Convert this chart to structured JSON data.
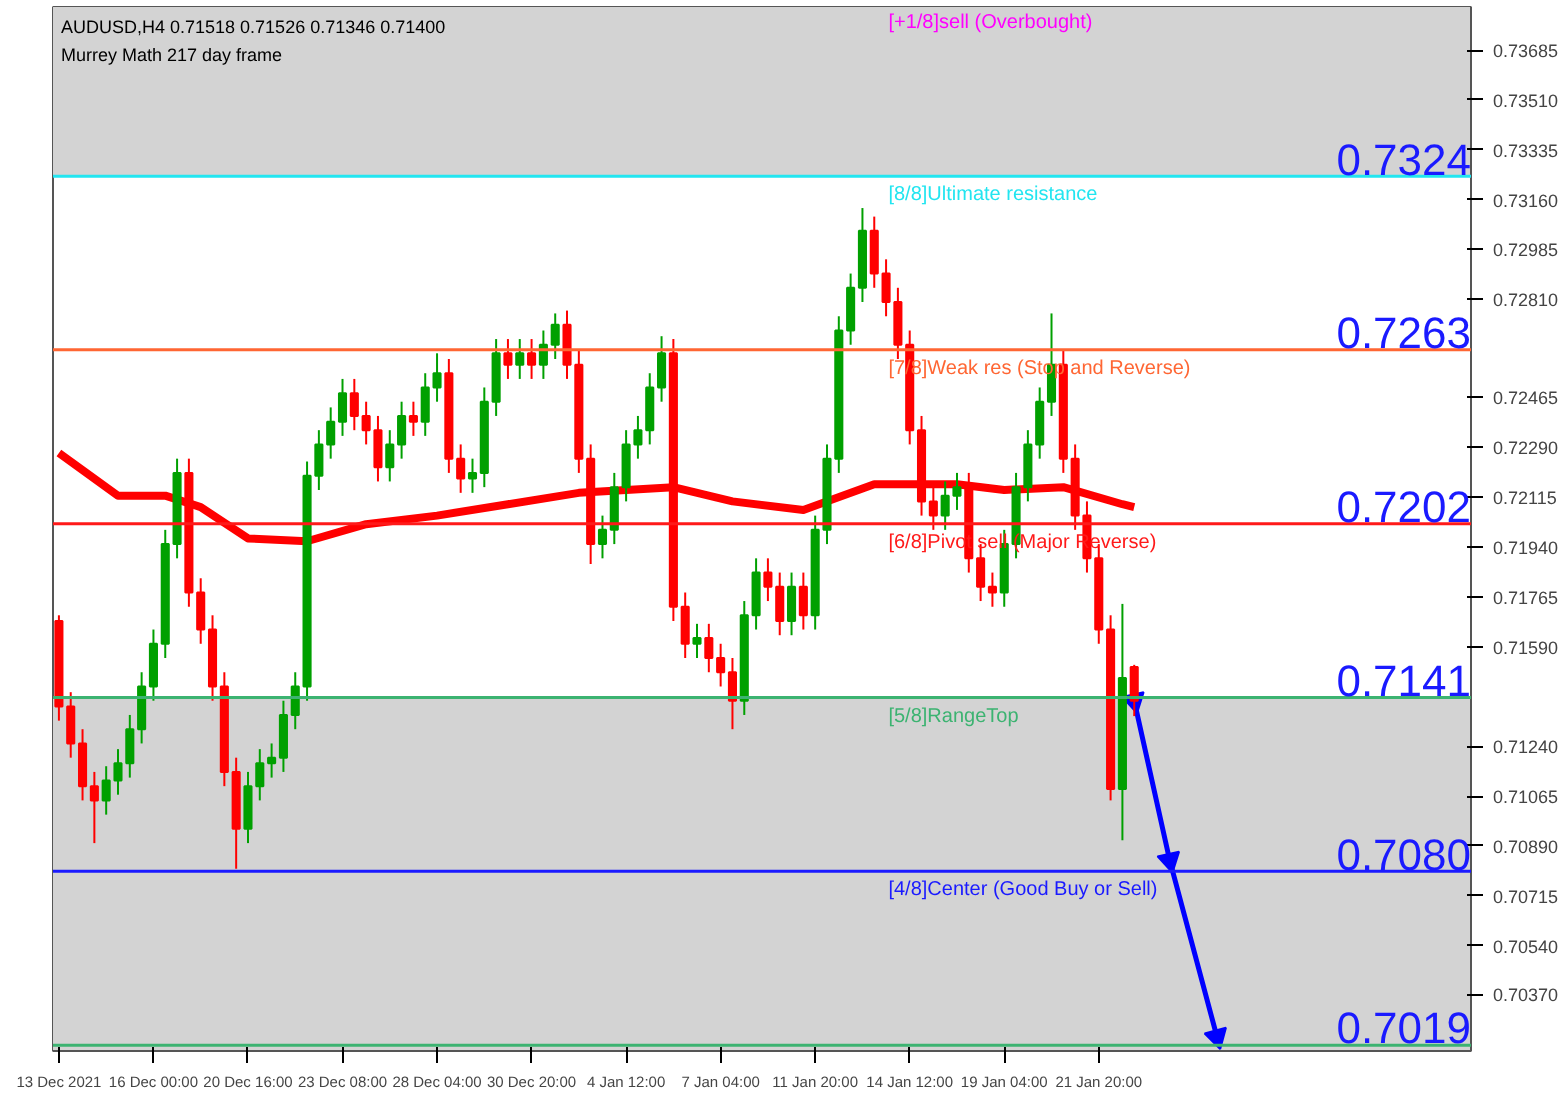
{
  "chart_data": {
    "type": "candlestick",
    "title": "AUDUSD,H4  0.71518 0.71526 0.71346 0.71400",
    "subtitle": "Murrey Math 217 day frame",
    "categories": [
      "13 Dec 2021",
      null,
      null,
      null,
      null,
      null,
      null,
      null,
      "16 Dec 00:00",
      null,
      null,
      null,
      null,
      null,
      null,
      null,
      "20 Dec 16:00",
      null,
      null,
      null,
      null,
      null,
      null,
      null,
      "23 Dec 08:00",
      null,
      null,
      null,
      null,
      null,
      null,
      null,
      "28 Dec 04:00",
      null,
      null,
      null,
      null,
      null,
      null,
      null,
      "30 Dec 20:00",
      null,
      null,
      null,
      null,
      null,
      null,
      null,
      "4 Jan 12:00",
      null,
      null,
      null,
      null,
      null,
      null,
      null,
      "7 Jan 04:00",
      null,
      null,
      null,
      null,
      null,
      null,
      null,
      "11 Jan 20:00",
      null,
      null,
      null,
      null,
      null,
      null,
      null,
      "14 Jan 12:00",
      null,
      null,
      null,
      null,
      null,
      null,
      null,
      "19 Jan 04:00",
      null,
      null,
      null,
      null,
      null,
      null,
      null,
      "21 Jan 20:00",
      null,
      null,
      null,
      null,
      null,
      null,
      null,
      null,
      null,
      null,
      null,
      null,
      null,
      null,
      null,
      null,
      null,
      null,
      null,
      null,
      null,
      null,
      null,
      null,
      null,
      null,
      null,
      null,
      null,
      null,
      null
    ],
    "ohlc": [
      [
        0.7168,
        0.717,
        0.7133,
        0.7138
      ],
      [
        0.7138,
        0.7143,
        0.712,
        0.7125
      ],
      [
        0.7125,
        0.713,
        0.7105,
        0.711
      ],
      [
        0.711,
        0.7115,
        0.709,
        0.7105
      ],
      [
        0.7105,
        0.7117,
        0.71,
        0.7112
      ],
      [
        0.7112,
        0.7123,
        0.7107,
        0.7118
      ],
      [
        0.7118,
        0.7135,
        0.7113,
        0.713
      ],
      [
        0.713,
        0.715,
        0.7125,
        0.7145
      ],
      [
        0.7145,
        0.7165,
        0.714,
        0.716
      ],
      [
        0.716,
        0.72,
        0.7155,
        0.7195
      ],
      [
        0.7195,
        0.7225,
        0.719,
        0.722
      ],
      [
        0.722,
        0.7225,
        0.7173,
        0.7178
      ],
      [
        0.7178,
        0.7183,
        0.716,
        0.7165
      ],
      [
        0.7165,
        0.717,
        0.714,
        0.7145
      ],
      [
        0.7145,
        0.715,
        0.711,
        0.7115
      ],
      [
        0.7115,
        0.712,
        0.7081,
        0.7095
      ],
      [
        0.7095,
        0.7115,
        0.709,
        0.711
      ],
      [
        0.711,
        0.7123,
        0.7105,
        0.7118
      ],
      [
        0.7118,
        0.7125,
        0.7113,
        0.712
      ],
      [
        0.712,
        0.714,
        0.7115,
        0.7135
      ],
      [
        0.7135,
        0.715,
        0.713,
        0.7145
      ],
      [
        0.7145,
        0.7224,
        0.714,
        0.7219
      ],
      [
        0.7219,
        0.7235,
        0.7214,
        0.723
      ],
      [
        0.723,
        0.7243,
        0.7225,
        0.7238
      ],
      [
        0.7238,
        0.7253,
        0.7233,
        0.7248
      ],
      [
        0.7248,
        0.7253,
        0.7235,
        0.724
      ],
      [
        0.724,
        0.7245,
        0.723,
        0.7235
      ],
      [
        0.7235,
        0.724,
        0.7217,
        0.7222
      ],
      [
        0.7222,
        0.7235,
        0.7217,
        0.723
      ],
      [
        0.723,
        0.7245,
        0.7225,
        0.724
      ],
      [
        0.724,
        0.7245,
        0.7233,
        0.7238
      ],
      [
        0.7238,
        0.7255,
        0.7233,
        0.725
      ],
      [
        0.725,
        0.7262,
        0.7245,
        0.7255
      ],
      [
        0.7255,
        0.726,
        0.722,
        0.7225
      ],
      [
        0.7225,
        0.723,
        0.7213,
        0.7218
      ],
      [
        0.7218,
        0.7225,
        0.7213,
        0.722
      ],
      [
        0.722,
        0.725,
        0.7215,
        0.7245
      ],
      [
        0.7245,
        0.7267,
        0.724,
        0.7262
      ],
      [
        0.7262,
        0.7267,
        0.7253,
        0.7258
      ],
      [
        0.7258,
        0.7267,
        0.7253,
        0.7262
      ],
      [
        0.7262,
        0.7267,
        0.7253,
        0.7258
      ],
      [
        0.7258,
        0.727,
        0.7253,
        0.7265
      ],
      [
        0.7265,
        0.7276,
        0.726,
        0.7272
      ],
      [
        0.7272,
        0.7277,
        0.7253,
        0.7258
      ],
      [
        0.7258,
        0.7263,
        0.722,
        0.7225
      ],
      [
        0.7225,
        0.723,
        0.7188,
        0.7195
      ],
      [
        0.7195,
        0.7205,
        0.719,
        0.72
      ],
      [
        0.72,
        0.722,
        0.7195,
        0.7215
      ],
      [
        0.7215,
        0.7235,
        0.721,
        0.723
      ],
      [
        0.723,
        0.724,
        0.7225,
        0.7235
      ],
      [
        0.7235,
        0.7255,
        0.723,
        0.725
      ],
      [
        0.725,
        0.7268,
        0.7245,
        0.7262
      ],
      [
        0.7262,
        0.7267,
        0.7168,
        0.7173
      ],
      [
        0.7173,
        0.7178,
        0.7155,
        0.716
      ],
      [
        0.716,
        0.7167,
        0.7155,
        0.7162
      ],
      [
        0.7162,
        0.7167,
        0.715,
        0.7155
      ],
      [
        0.7155,
        0.716,
        0.7145,
        0.715
      ],
      [
        0.715,
        0.7155,
        0.713,
        0.714
      ],
      [
        0.714,
        0.7175,
        0.7135,
        0.717
      ],
      [
        0.717,
        0.719,
        0.7165,
        0.7185
      ],
      [
        0.7185,
        0.719,
        0.7175,
        0.718
      ],
      [
        0.718,
        0.7185,
        0.7163,
        0.7168
      ],
      [
        0.7168,
        0.7185,
        0.7163,
        0.718
      ],
      [
        0.718,
        0.7185,
        0.7165,
        0.717
      ],
      [
        0.717,
        0.7205,
        0.7165,
        0.72
      ],
      [
        0.72,
        0.723,
        0.7195,
        0.7225
      ],
      [
        0.7225,
        0.7275,
        0.722,
        0.727
      ],
      [
        0.727,
        0.729,
        0.7265,
        0.7285
      ],
      [
        0.7285,
        0.7313,
        0.728,
        0.7305
      ],
      [
        0.7305,
        0.731,
        0.7285,
        0.729
      ],
      [
        0.729,
        0.7295,
        0.7275,
        0.728
      ],
      [
        0.728,
        0.7285,
        0.726,
        0.7265
      ],
      [
        0.7265,
        0.727,
        0.723,
        0.7235
      ],
      [
        0.7235,
        0.724,
        0.7205,
        0.721
      ],
      [
        0.721,
        0.7215,
        0.72,
        0.7205
      ],
      [
        0.7205,
        0.7217,
        0.72,
        0.7212
      ],
      [
        0.7212,
        0.722,
        0.7207,
        0.7215
      ],
      [
        0.7215,
        0.722,
        0.7185,
        0.719
      ],
      [
        0.719,
        0.7195,
        0.7175,
        0.718
      ],
      [
        0.718,
        0.7185,
        0.7173,
        0.7178
      ],
      [
        0.7178,
        0.72,
        0.7173,
        0.7195
      ],
      [
        0.7195,
        0.722,
        0.719,
        0.7215
      ],
      [
        0.7215,
        0.7235,
        0.721,
        0.723
      ],
      [
        0.723,
        0.725,
        0.7225,
        0.7245
      ],
      [
        0.7245,
        0.7276,
        0.724,
        0.7258
      ],
      [
        0.7258,
        0.7263,
        0.722,
        0.7225
      ],
      [
        0.7225,
        0.723,
        0.72,
        0.7205
      ],
      [
        0.7205,
        0.721,
        0.7185,
        0.719
      ],
      [
        0.719,
        0.7195,
        0.716,
        0.7165
      ],
      [
        0.7165,
        0.717,
        0.7105,
        0.7109
      ],
      [
        0.7109,
        0.7174,
        0.7091,
        0.7148
      ],
      [
        0.71518,
        0.71526,
        0.71346,
        0.714
      ],
      null,
      null,
      null,
      null,
      null,
      null,
      null,
      null,
      null,
      null,
      null,
      null,
      null,
      null,
      null,
      null,
      null,
      null,
      null,
      null,
      null,
      null,
      null,
      null,
      null,
      null,
      null,
      null
    ],
    "colors": [
      "#ff0000",
      "#ff0000",
      "#ff0000",
      "#ff0000",
      "#00a000",
      "#00a000",
      "#00a000",
      "#00a000",
      "#00a000",
      "#00a000",
      "#00a000",
      "#ff0000",
      "#ff0000",
      "#ff0000",
      "#ff0000",
      "#ff0000",
      "#00a000",
      "#00a000",
      "#00a000",
      "#00a000",
      "#00a000",
      "#00a000",
      "#00a000",
      "#00a000",
      "#00a000",
      "#ff0000",
      "#ff0000",
      "#ff0000",
      "#00a000",
      "#00a000",
      "#ff0000",
      "#00a000",
      "#00a000",
      "#ff0000",
      "#ff0000",
      "#00a000",
      "#00a000",
      "#00a000",
      "#ff0000",
      "#00a000",
      "#ff0000",
      "#00a000",
      "#00a000",
      "#ff0000",
      "#ff0000",
      "#ff0000",
      "#00a000",
      "#00a000",
      "#00a000",
      "#00a000",
      "#00a000",
      "#00a000",
      "#ff0000",
      "#ff0000",
      "#00a000",
      "#ff0000",
      "#ff0000",
      "#ff0000",
      "#00a000",
      "#00a000",
      "#ff0000",
      "#ff0000",
      "#00a000",
      "#ff0000",
      "#00a000",
      "#00a000",
      "#00a000",
      "#00a000",
      "#00a000",
      "#ff0000",
      "#ff0000",
      "#ff0000",
      "#ff0000",
      "#ff0000",
      "#ff0000",
      "#00a000",
      "#00a000",
      "#ff0000",
      "#ff0000",
      "#ff0000",
      "#00a000",
      "#00a000",
      "#00a000",
      "#00a000",
      "#00a000",
      "#ff0000",
      "#ff0000",
      "#ff0000",
      "#ff0000",
      "#ff0000",
      "#00a000",
      "#ff0000",
      null,
      null,
      null,
      null,
      null,
      null,
      null,
      null,
      null,
      null,
      null,
      null,
      null,
      null,
      null,
      null,
      null,
      null,
      null,
      null,
      null,
      null,
      null,
      null,
      null,
      null,
      null,
      null
    ],
    "series": [
      {
        "type": "line",
        "color": "#ff0000",
        "values": [
          0.7227,
          null,
          null,
          null,
          null,
          0.7212,
          null,
          null,
          null,
          0.7212,
          null,
          null,
          0.7208,
          null,
          null,
          null,
          0.7197,
          null,
          null,
          null,
          null,
          0.7196,
          null,
          null,
          null,
          null,
          0.7202,
          null,
          null,
          null,
          null,
          null,
          0.7205,
          null,
          null,
          null,
          null,
          null,
          0.7209,
          null,
          null,
          null,
          null,
          null,
          0.7213,
          null,
          null,
          null,
          null,
          null,
          null,
          null,
          0.7215,
          null,
          null,
          null,
          null,
          0.721,
          null,
          null,
          null,
          null,
          null,
          0.7207,
          null,
          null,
          null,
          null,
          null,
          0.7216,
          null,
          null,
          null,
          null,
          null,
          null,
          0.7216,
          null,
          null,
          null,
          0.7214,
          null,
          null,
          null,
          null,
          0.7215,
          null,
          null,
          null,
          null,
          0.7209,
          0.7208,
          null,
          null,
          null,
          null,
          null,
          null,
          null,
          null,
          null,
          null,
          null,
          null,
          null,
          null,
          null,
          null,
          null,
          null,
          null,
          null,
          null,
          null,
          null,
          null,
          null,
          null,
          null,
          null
        ]
      },
      {
        "type": "line",
        "color": "#0000ff",
        "marker": "triangle",
        "values": [
          null,
          null,
          null,
          null,
          null,
          null,
          null,
          null,
          null,
          null,
          null,
          null,
          null,
          null,
          null,
          null,
          null,
          null,
          null,
          null,
          null,
          null,
          null,
          null,
          null,
          null,
          null,
          null,
          null,
          null,
          null,
          null,
          null,
          null,
          null,
          null,
          null,
          null,
          null,
          null,
          null,
          null,
          null,
          null,
          null,
          null,
          null,
          null,
          null,
          null,
          null,
          null,
          null,
          null,
          null,
          null,
          null,
          null,
          null,
          null,
          null,
          null,
          null,
          null,
          null,
          null,
          null,
          null,
          null,
          null,
          null,
          null,
          null,
          null,
          null,
          null,
          null,
          null,
          null,
          null,
          null,
          null,
          null,
          null,
          null,
          null,
          null,
          null,
          null,
          null,
          null,
          0.714,
          null,
          null,
          0.7084,
          null,
          null,
          null,
          0.7022,
          null,
          null,
          null,
          null,
          null,
          null,
          null,
          null,
          null,
          null,
          null,
          null,
          null,
          null,
          null,
          null,
          null,
          null,
          null,
          null,
          null
        ]
      }
    ],
    "ylim": [
      0.7017,
      0.73836
    ],
    "yticks": [
      {
        "value": 0.7037,
        "label": "0.70370"
      },
      {
        "value": 0.7054,
        "label": "0.70540"
      },
      {
        "value": 0.70715,
        "label": "0.70715"
      },
      {
        "value": 0.7089,
        "label": "0.70890"
      },
      {
        "value": 0.71065,
        "label": "0.71065"
      },
      {
        "value": 0.7124,
        "label": "0.71240"
      },
      {
        "value": 0.7159,
        "label": "0.71590"
      },
      {
        "value": 0.71765,
        "label": "0.71765"
      },
      {
        "value": 0.7194,
        "label": "0.71940"
      },
      {
        "value": 0.72115,
        "label": "0.72115"
      },
      {
        "value": 0.7229,
        "label": "0.72290"
      },
      {
        "value": 0.72465,
        "label": "0.72465"
      },
      {
        "value": 0.7281,
        "label": "0.72810"
      },
      {
        "value": 0.72985,
        "label": "0.72985"
      },
      {
        "value": 0.7316,
        "label": "0.73160"
      },
      {
        "value": 0.73335,
        "label": "0.73335"
      },
      {
        "value": 0.7351,
        "label": "0.73510"
      },
      {
        "value": 0.73685,
        "label": "0.73685"
      }
    ],
    "bands": [
      {
        "axis": "y",
        "from": 0.73242,
        "to": 0.73836,
        "color": "#d3d3d3"
      },
      {
        "axis": "y",
        "from": 0.7017,
        "to": 0.71411,
        "color": "#d3d3d3"
      }
    ],
    "ref_lines": [
      {
        "axis": "y",
        "value": 0.73242,
        "label": "[8/8]Ultimate resistance",
        "color": "#22e5f0"
      },
      {
        "axis": "y",
        "value": 0.72632,
        "label": "[7/8]Weak res (Stop and Reverse)",
        "color": "#ff6633"
      },
      {
        "axis": "y",
        "value": 0.72021,
        "label": "[6/8]Pivot sell (Major Reverse)",
        "color": "#ff1a1a"
      },
      {
        "axis": "y",
        "value": 0.71411,
        "label": "[5/8]RangeTop",
        "color": "#3cb371"
      },
      {
        "axis": "y",
        "value": 0.70801,
        "label": "[4/8]Center (Good Buy or Sell)",
        "color": "#1a1aff"
      },
      {
        "axis": "y",
        "value": 0.7019,
        "label": null,
        "color": "#3cb371"
      }
    ],
    "annotations": [
      {
        "text": "[+1/8]sell (Overbought)",
        "y": 0.7382
      },
      {
        "text": "0.7324",
        "y": 0.7324
      },
      {
        "text": "0.7263",
        "y": 0.7263
      },
      {
        "text": "0.7202",
        "y": 0.7202
      },
      {
        "text": "0.7141",
        "y": 0.7141
      },
      {
        "text": "0.7080",
        "y": 0.708
      },
      {
        "text": "0.7019",
        "y": 0.7019
      }
    ],
    "grid": false
  }
}
